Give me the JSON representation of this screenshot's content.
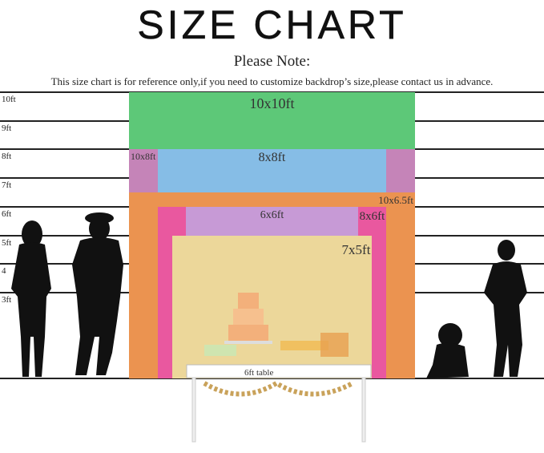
{
  "title": "SIZE CHART",
  "note_heading": "Please Note:",
  "note_text": "This size chart is for reference only,if you need to customize backdrop’s size,please contact us in advance.",
  "height_labels": [
    "10ft",
    "9ft",
    "8ft",
    "7ft",
    "6ft",
    "5ft",
    "4",
    "3ft"
  ],
  "backdrops": [
    {
      "label": "10x10ft",
      "width_ft": 10,
      "height_ft": 10,
      "color": "#5dc878"
    },
    {
      "label": "10x8ft",
      "width_ft": 10,
      "height_ft": 8,
      "color": "#c584b8"
    },
    {
      "label": "8x8ft",
      "width_ft": 8,
      "height_ft": 8,
      "color": "#86bde6"
    },
    {
      "label": "10x6.5ft",
      "width_ft": 10,
      "height_ft": 6.5,
      "color": "#eb9350"
    },
    {
      "label": "8x6ft",
      "width_ft": 8,
      "height_ft": 6,
      "color": "#e9589f"
    },
    {
      "label": "6x6ft",
      "width_ft": 6,
      "height_ft": 6,
      "color": "#c79ad6"
    },
    {
      "label": "7x5ft",
      "width_ft": 7,
      "height_ft": 5,
      "color": "#ecd79a"
    }
  ],
  "table_label": "6ft table"
}
